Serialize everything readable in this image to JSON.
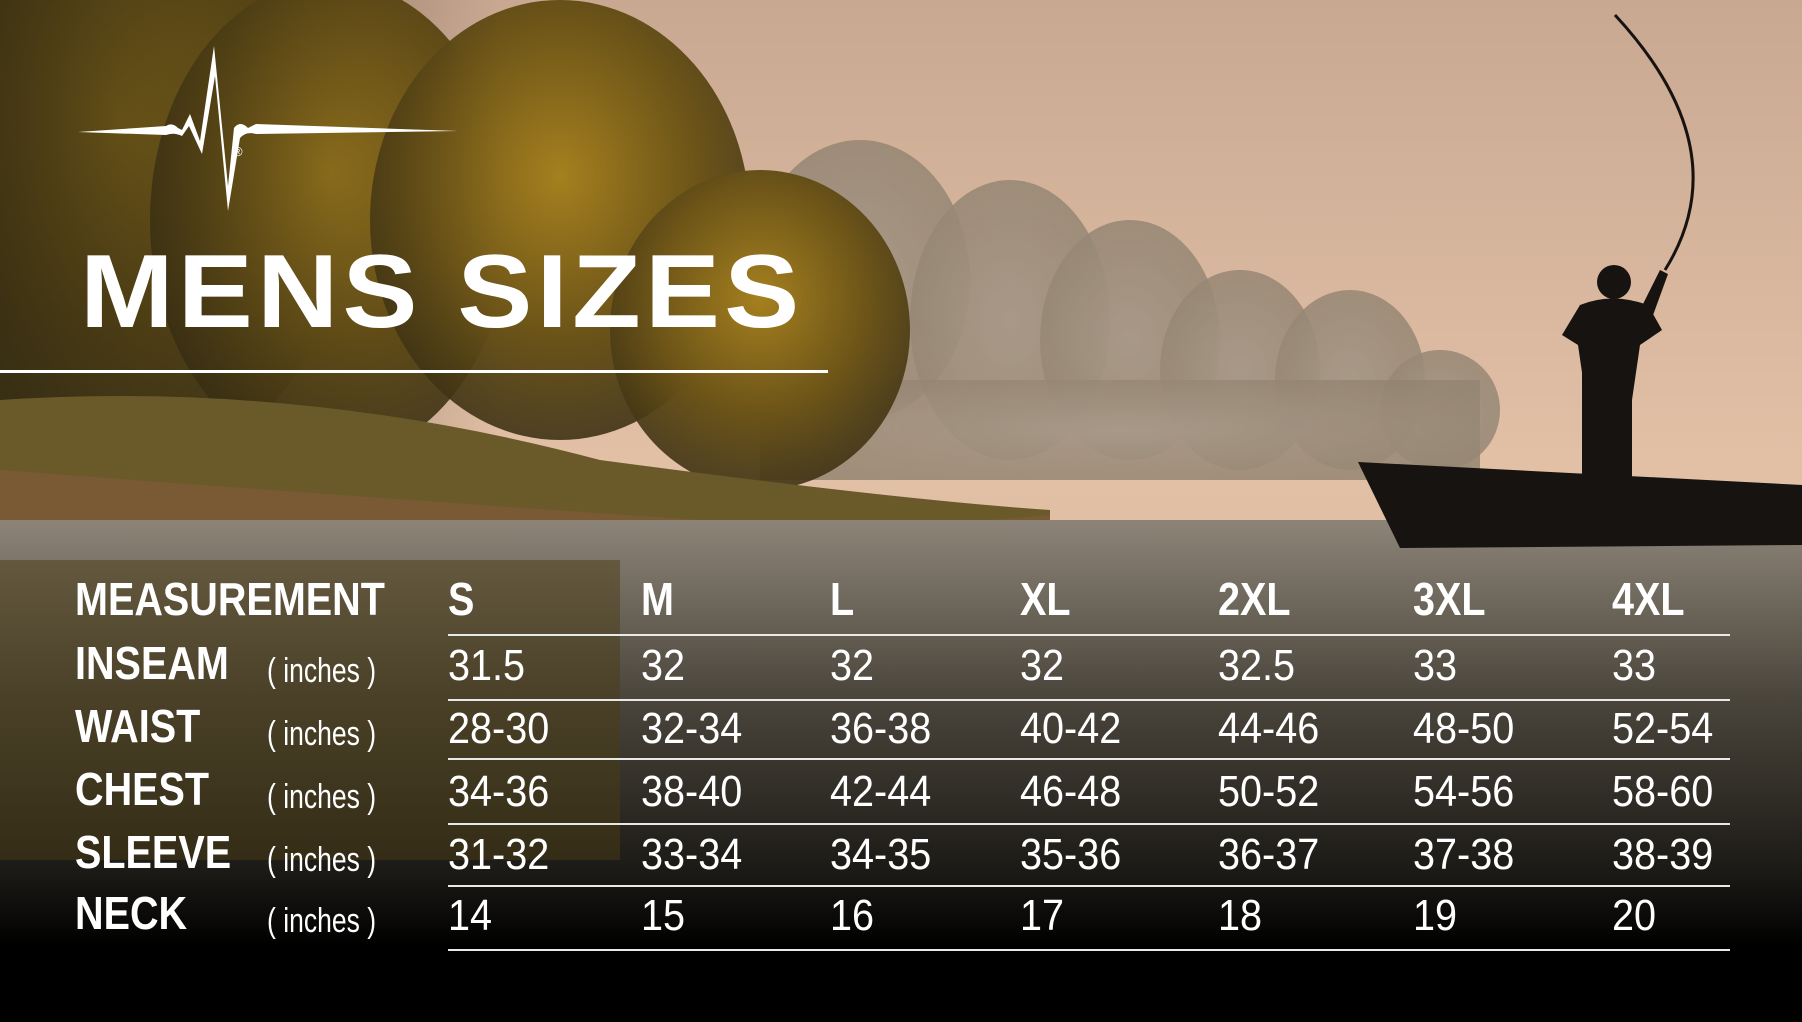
{
  "title": "MENS SIZES",
  "logo": {
    "icon": "heartbeat-pulse-line-icon",
    "mark": "®"
  },
  "colors": {
    "sky": "#d8b49c",
    "foliage": "#8a6a1e",
    "water": "#4a4a3c",
    "bottom": "#000000",
    "text": "#ffffff"
  },
  "table": {
    "header": {
      "measurement": "MEASUREMENT",
      "sizes": [
        "S",
        "M",
        "L",
        "XL",
        "2XL",
        "3XL",
        "4XL"
      ]
    },
    "rows": [
      {
        "label": "INSEAM",
        "unit": "( inches )",
        "values": [
          "31.5",
          "32",
          "32",
          "32",
          "32.5",
          "33",
          "33"
        ]
      },
      {
        "label": "WAIST",
        "unit": "( inches )",
        "values": [
          "28-30",
          "32-34",
          "36-38",
          "40-42",
          "44-46",
          "48-50",
          "52-54"
        ]
      },
      {
        "label": "CHEST",
        "unit": "( inches )",
        "values": [
          "34-36",
          "38-40",
          "42-44",
          "46-48",
          "50-52",
          "54-56",
          "58-60"
        ]
      },
      {
        "label": "SLEEVE",
        "unit": "( inches )",
        "values": [
          "31-32",
          "33-34",
          "34-35",
          "35-36",
          "36-37",
          "37-38",
          "38-39"
        ]
      },
      {
        "label": "NECK",
        "unit": "( inches )",
        "values": [
          "14",
          "15",
          "16",
          "17",
          "18",
          "19",
          "20"
        ]
      }
    ]
  }
}
